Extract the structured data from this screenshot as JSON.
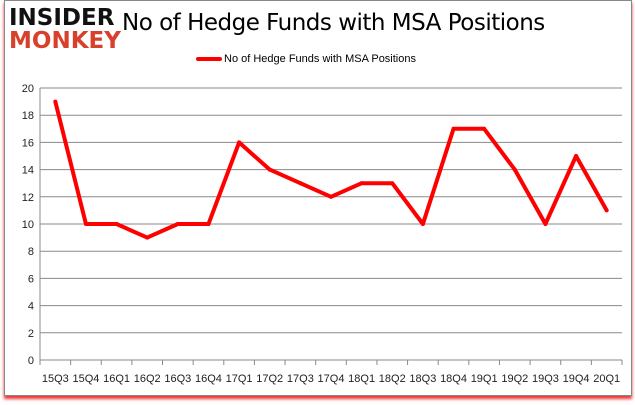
{
  "logo": {
    "line1": "INSIDER",
    "line2": "MONKEY"
  },
  "chart_data": {
    "type": "line",
    "title": "No of Hedge Funds with MSA Positions",
    "xlabel": "",
    "ylabel": "",
    "categories": [
      "15Q3",
      "15Q4",
      "16Q1",
      "16Q2",
      "16Q3",
      "16Q4",
      "17Q1",
      "17Q2",
      "17Q3",
      "17Q4",
      "18Q1",
      "18Q2",
      "18Q3",
      "18Q4",
      "19Q1",
      "19Q2",
      "19Q3",
      "19Q4",
      "20Q1"
    ],
    "series": [
      {
        "name": "No of Hedge Funds with MSA Positions",
        "values": [
          19,
          10,
          10,
          9,
          10,
          10,
          16,
          14,
          13,
          12,
          13,
          13,
          10,
          17,
          17,
          14,
          10,
          15,
          11
        ],
        "color": "#ff0000"
      }
    ],
    "ylim": [
      0,
      20
    ],
    "yticks": [
      0,
      2,
      4,
      6,
      8,
      10,
      12,
      14,
      16,
      18,
      20
    ],
    "grid": true,
    "legend": "top-center"
  }
}
